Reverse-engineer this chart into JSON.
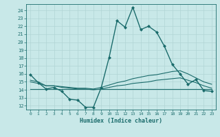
{
  "xlabel": "Humidex (Indice chaleur)",
  "ylabel": "",
  "xlim": [
    -0.5,
    23.5
  ],
  "ylim": [
    11.5,
    24.8
  ],
  "yticks": [
    12,
    13,
    14,
    15,
    16,
    17,
    18,
    19,
    20,
    21,
    22,
    23,
    24
  ],
  "xticks": [
    0,
    1,
    2,
    3,
    4,
    5,
    6,
    7,
    8,
    9,
    10,
    11,
    12,
    13,
    14,
    15,
    16,
    17,
    18,
    19,
    20,
    21,
    22,
    23
  ],
  "background_color": "#c8e8e8",
  "grid_color": "#b0d4d4",
  "line_color": "#1a6b6b",
  "lines": [
    {
      "x": [
        0,
        1,
        2,
        3,
        4,
        5,
        6,
        7,
        8,
        9,
        10,
        11,
        12,
        13,
        14,
        15,
        16,
        17,
        18,
        19,
        20,
        21,
        22,
        23
      ],
      "y": [
        15.9,
        14.9,
        14.1,
        14.3,
        13.8,
        12.8,
        12.7,
        11.8,
        11.8,
        14.3,
        18.1,
        22.7,
        21.9,
        24.4,
        21.6,
        22.0,
        21.3,
        19.5,
        17.2,
        16.0,
        14.7,
        15.3,
        13.9,
        13.8
      ],
      "marker": "D",
      "markersize": 2.0,
      "linewidth": 1.0
    },
    {
      "x": [
        0,
        1,
        2,
        3,
        4,
        5,
        6,
        7,
        8,
        9,
        10,
        11,
        12,
        13,
        14,
        15,
        16,
        17,
        18,
        19,
        20,
        21,
        22,
        23
      ],
      "y": [
        15.2,
        15.0,
        14.5,
        14.5,
        14.4,
        14.3,
        14.2,
        14.2,
        14.1,
        14.3,
        14.6,
        14.9,
        15.1,
        15.4,
        15.6,
        15.8,
        15.9,
        16.1,
        16.3,
        16.4,
        16.0,
        15.5,
        15.0,
        14.7
      ],
      "marker": null,
      "markersize": 0,
      "linewidth": 0.8
    },
    {
      "x": [
        0,
        1,
        2,
        3,
        4,
        5,
        6,
        7,
        8,
        9,
        10,
        11,
        12,
        13,
        14,
        15,
        16,
        17,
        18,
        19,
        20,
        21,
        22,
        23
      ],
      "y": [
        15.0,
        14.8,
        14.5,
        14.5,
        14.3,
        14.2,
        14.1,
        14.1,
        14.0,
        14.1,
        14.3,
        14.5,
        14.6,
        14.8,
        14.9,
        15.0,
        15.2,
        15.3,
        15.4,
        15.5,
        15.2,
        14.9,
        14.5,
        14.2
      ],
      "marker": null,
      "markersize": 0,
      "linewidth": 0.8
    },
    {
      "x": [
        0,
        23
      ],
      "y": [
        14.1,
        14.1
      ],
      "marker": null,
      "markersize": 0,
      "linewidth": 0.8
    }
  ]
}
